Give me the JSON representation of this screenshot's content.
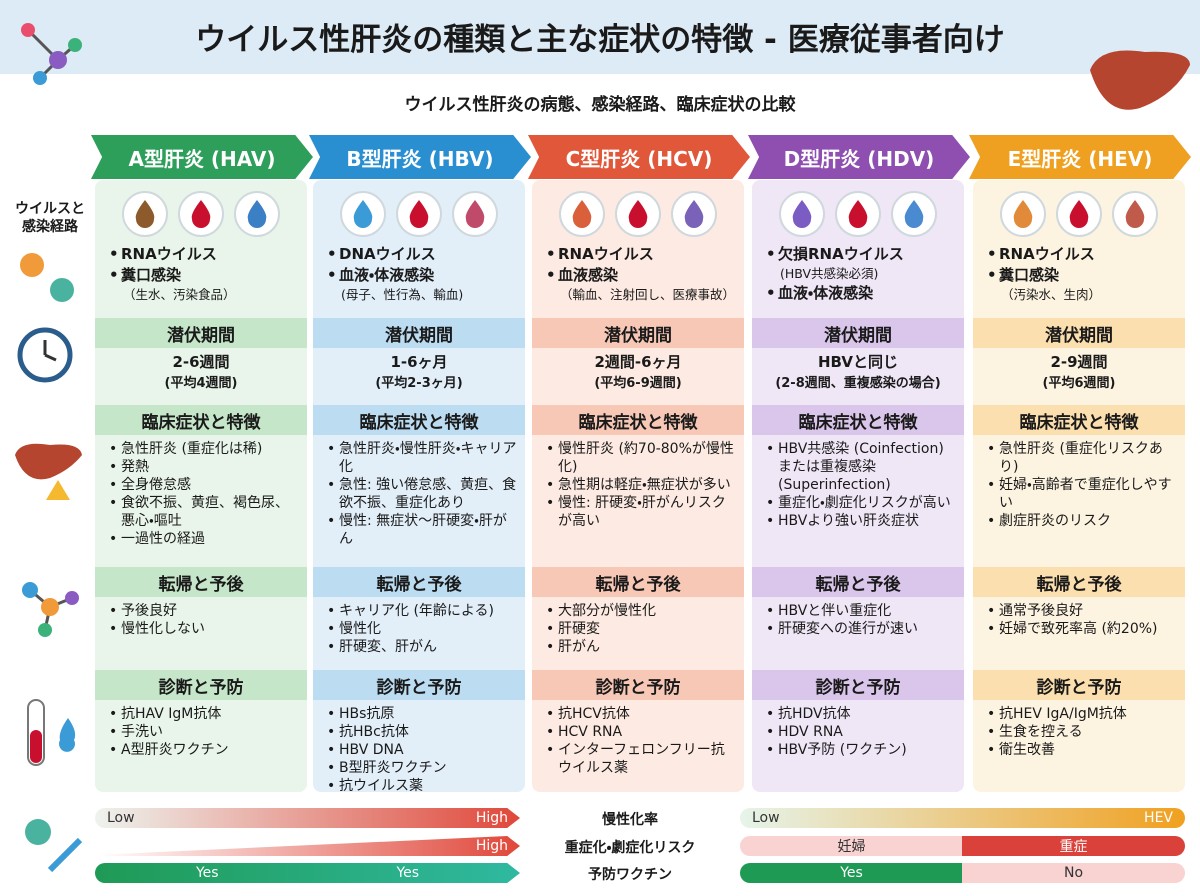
{
  "title": "ウイルス性肝炎の種類と主な症状の特徴 - 医療従事者向け",
  "subtitle": "ウイルス性肝炎の病態、感染経路、臨床症状の比較",
  "row_label": [
    "ウイルスと",
    "感染経路"
  ],
  "columns": [
    {
      "header": "A型肝炎 (HAV)",
      "virus": [
        {
          "text": "RNAウイルス"
        },
        {
          "text": "糞口感染",
          "note": "（生水、汚染食品）"
        }
      ],
      "incubation": {
        "title": "潜伏期間",
        "lines": [
          "2-6週間",
          "(平均4週間)"
        ]
      },
      "symptoms": {
        "title": "臨床症状と特徴",
        "items": [
          "急性肝炎 (重症化は稀)",
          "発熱",
          "全身倦怠感",
          "食欲不振、黄疸、褐色尿、悪心・嘔吐",
          "一過性の経過"
        ]
      },
      "prognosis": {
        "title": "転帰と予後",
        "items": [
          "予後良好",
          "慢性化しない"
        ]
      },
      "diagnosis": {
        "title": "診断と予防",
        "items": [
          "抗HAV IgM抗体",
          "手洗い",
          "A型肝炎ワクチン"
        ]
      }
    },
    {
      "header": "B型肝炎 (HBV)",
      "virus": [
        {
          "text": "DNAウイルス"
        },
        {
          "text": "血液・体液感染",
          "note": "(母子、性行為、輸血)"
        }
      ],
      "incubation": {
        "title": "潜伏期間",
        "lines": [
          "1-6ヶ月",
          "(平均2-3ヶ月)"
        ]
      },
      "symptoms": {
        "title": "臨床症状と特徴",
        "items": [
          "急性肝炎・慢性肝炎・キャリア化",
          "急性: 強い倦怠感、黄疸、食欲不振、重症化あり",
          "慢性: 無症状〜肝硬変・肝がん"
        ]
      },
      "prognosis": {
        "title": "転帰と予後",
        "items": [
          "キャリア化 (年齢による)",
          "慢性化",
          "肝硬変、肝がん"
        ]
      },
      "diagnosis": {
        "title": "診断と予防",
        "items": [
          "HBs抗原",
          "抗HBc抗体",
          "HBV DNA",
          "B型肝炎ワクチン",
          "抗ウイルス薬"
        ]
      }
    },
    {
      "header": "C型肝炎 (HCV)",
      "virus": [
        {
          "text": "RNAウイルス"
        },
        {
          "text": "血液感染",
          "note": "（輸血、注射回し、医療事故）"
        }
      ],
      "incubation": {
        "title": "潜伏期間",
        "lines": [
          "2週間-6ヶ月",
          "(平均6-9週間)"
        ]
      },
      "symptoms": {
        "title": "臨床症状と特徴",
        "items": [
          "慢性肝炎 (約70-80%が慢性化)",
          "急性期は軽症・無症状が多い",
          "慢性: 肝硬変・肝がんリスクが高い"
        ]
      },
      "prognosis": {
        "title": "転帰と予後",
        "items": [
          "大部分が慢性化",
          "肝硬変",
          "肝がん"
        ]
      },
      "diagnosis": {
        "title": "診断と予防",
        "items": [
          "抗HCV抗体",
          "HCV RNA",
          "インターフェロンフリー抗ウイルス薬"
        ]
      }
    },
    {
      "header": "D型肝炎 (HDV)",
      "virus": [
        {
          "text": "欠損RNAウイルス",
          "note": "(HBV共感染必須)"
        },
        {
          "text": "血液・体液感染"
        }
      ],
      "incubation": {
        "title": "潜伏期間",
        "lines": [
          "HBVと同じ",
          "(2-8週間、重複感染の場合)"
        ]
      },
      "symptoms": {
        "title": "臨床症状と特徴",
        "items": [
          "HBV共感染 (Coinfection) または重複感染 (Superinfection)",
          "重症化・劇症化リスクが高い",
          "HBVより強い肝炎症状"
        ]
      },
      "prognosis": {
        "title": "転帰と予後",
        "items": [
          "HBVと伴い重症化",
          "肝硬変への進行が速い"
        ]
      },
      "diagnosis": {
        "title": "診断と予防",
        "items": [
          "抗HDV抗体",
          "HDV RNA",
          "HBV予防 (ワクチン)"
        ]
      }
    },
    {
      "header": "E型肝炎 (HEV)",
      "virus": [
        {
          "text": "RNAウイルス"
        },
        {
          "text": "糞口感染",
          "note": "（汚染水、生肉）"
        }
      ],
      "incubation": {
        "title": "潜伏期間",
        "lines": [
          "2-9週間",
          "(平均6週間)"
        ]
      },
      "symptoms": {
        "title": "臨床症状と特徴",
        "items": [
          "急性肝炎 (重症化リスクあり)",
          "妊婦・高齢者で重症化しやすい",
          "劇症肝炎のリスク"
        ]
      },
      "prognosis": {
        "title": "転帰と予後",
        "items": [
          "通常予後良好",
          "妊婦で致死率高 (約20%)"
        ]
      },
      "diagnosis": {
        "title": "診断と予防",
        "items": [
          "抗HEV IgA/IgM抗体",
          "生食を控える",
          "衛生改善"
        ]
      }
    }
  ],
  "bottom": [
    {
      "label": "慢性化率",
      "left": [
        "Low",
        "High"
      ],
      "right": [
        "Low",
        "HEV"
      ]
    },
    {
      "label": "重症化・劇症化リスク",
      "left": [
        "High"
      ],
      "right": [
        "妊婦",
        "重症"
      ]
    },
    {
      "label": "予防ワクチン",
      "left": [
        "Yes",
        "Yes"
      ],
      "right": [
        "Yes",
        "No"
      ]
    }
  ]
}
